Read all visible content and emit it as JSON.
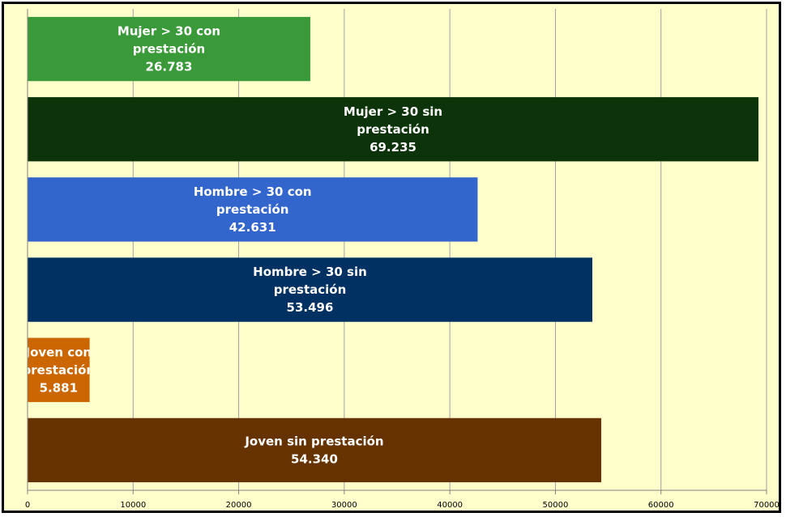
{
  "chart_data": {
    "type": "bar",
    "orientation": "horizontal",
    "categories": [
      "Mujer > 30 con prestación",
      "Mujer > 30 sin prestación",
      "Hombre > 30 con prestación",
      "Hombre > 30 sin prestación",
      "Joven con prestación",
      "Joven sin prestación"
    ],
    "values": [
      26783,
      69235,
      42631,
      53496,
      5881,
      54340
    ],
    "data_labels": [
      "26.783",
      "69.235",
      "42.631",
      "53.496",
      "5.881",
      "54.340"
    ],
    "label_lines": [
      [
        "Mujer > 30 con",
        "prestación",
        "26.783"
      ],
      [
        "Mujer > 30 sin",
        "prestación",
        "69.235"
      ],
      [
        "Hombre > 30 con",
        "prestación",
        "42.631"
      ],
      [
        "Hombre > 30 sin",
        "prestación",
        "53.496"
      ],
      [
        "Joven con",
        "prestación",
        "5.881"
      ],
      [
        "Joven sin prestación",
        "54.340"
      ]
    ],
    "colors": [
      "#3a9a3a",
      "#0c3309",
      "#3366cc",
      "#013062",
      "#cc6600",
      "#663300"
    ],
    "x_ticks": [
      "0",
      "10000",
      "20000",
      "30000",
      "40000",
      "50000",
      "60000",
      "70000"
    ],
    "xlim": [
      0,
      70000
    ],
    "title": "",
    "xlabel": "",
    "ylabel": "",
    "grid": "vertical",
    "legend": "none",
    "background": "#ffffcc"
  }
}
